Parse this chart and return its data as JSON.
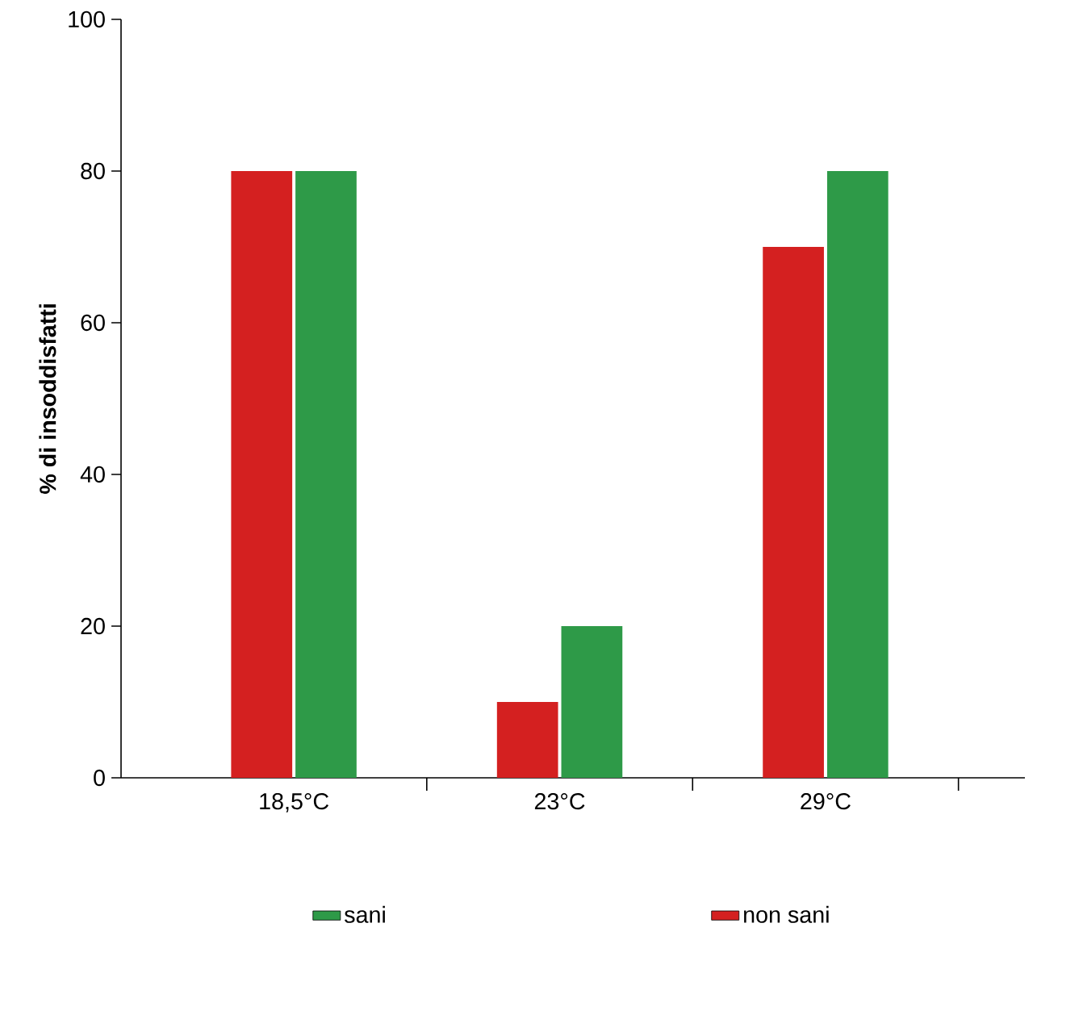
{
  "chart_data": {
    "type": "bar",
    "ylabel": "% di insoddisfatti",
    "categories": [
      "18,5°C",
      "23°C",
      "29°C"
    ],
    "series": [
      {
        "name": "non sani",
        "color": "#d42020",
        "values": [
          80,
          10,
          70
        ]
      },
      {
        "name": "sani",
        "color": "#2e9a48",
        "values": [
          80,
          20,
          80
        ]
      }
    ],
    "ylim": [
      0,
      100
    ],
    "yticks": [
      0,
      20,
      40,
      60,
      80,
      100
    ],
    "grid": false,
    "legend": "bottom"
  }
}
